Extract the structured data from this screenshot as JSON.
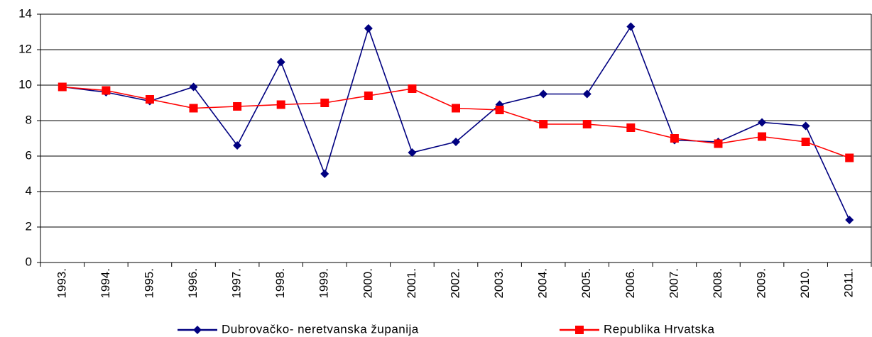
{
  "chart_data": {
    "type": "line",
    "categories": [
      "1993.",
      "1994.",
      "1995.",
      "1996.",
      "1997.",
      "1998.",
      "1999.",
      "2000.",
      "2001.",
      "2002.",
      "2003.",
      "2004.",
      "2005.",
      "2006.",
      "2007.",
      "2008.",
      "2009.",
      "2010.",
      "2011."
    ],
    "series": [
      {
        "name": "Dubrovačko- neretvanska županija",
        "color": "#000080",
        "marker": "diamond",
        "values": [
          9.9,
          9.6,
          9.1,
          9.9,
          6.6,
          11.3,
          5.0,
          13.2,
          6.2,
          6.8,
          8.9,
          9.5,
          9.5,
          13.3,
          6.9,
          6.8,
          7.9,
          7.7,
          2.4
        ]
      },
      {
        "name": "Republika Hrvatska",
        "color": "#ff0000",
        "marker": "square",
        "values": [
          9.9,
          9.7,
          9.2,
          8.7,
          8.8,
          8.9,
          9.0,
          9.4,
          9.8,
          8.7,
          8.6,
          7.8,
          7.8,
          7.6,
          7.0,
          6.7,
          7.1,
          6.8,
          5.9
        ]
      }
    ],
    "ylim": [
      0,
      14
    ],
    "yticks": [
      0,
      2,
      4,
      6,
      8,
      10,
      12,
      14
    ],
    "grid": true,
    "legend": "bottom"
  }
}
